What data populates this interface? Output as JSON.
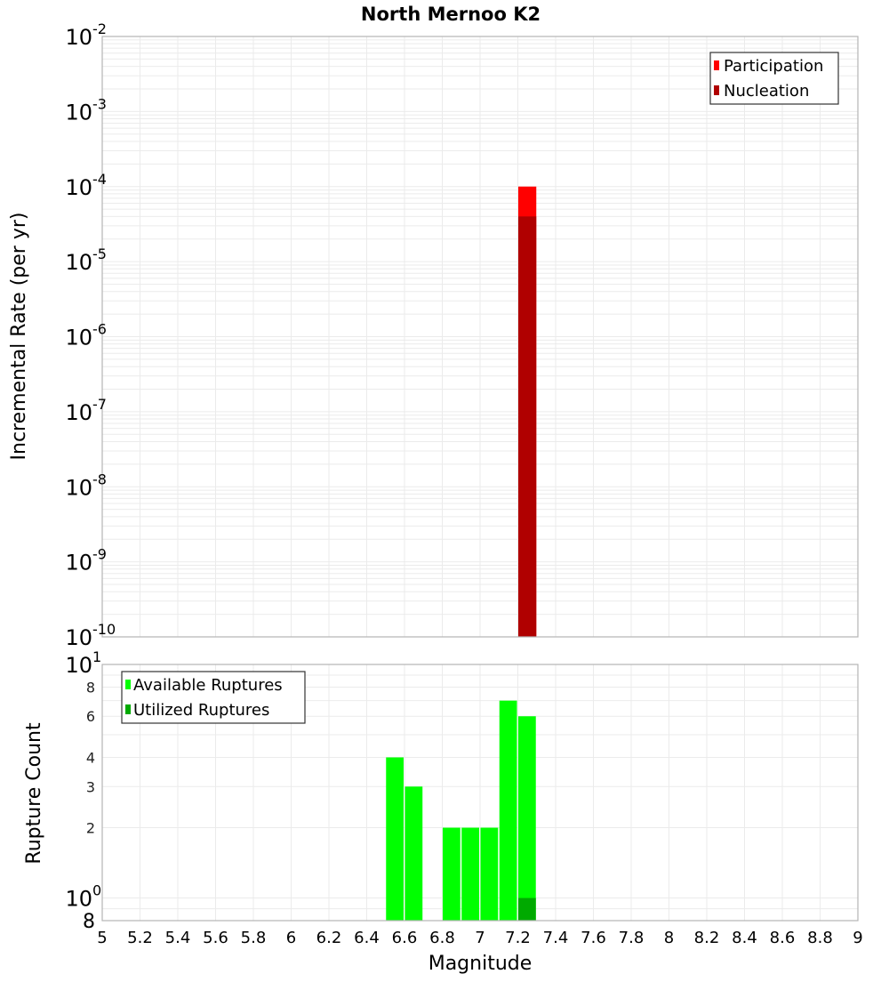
{
  "title": "North Mernoo K2",
  "colors": {
    "participation": "#ff0000",
    "nucleation": "#b00000",
    "available": "#00ff00",
    "utilized": "#00aa00",
    "grid": "#ebebeb",
    "frame": "#b4b4b4"
  },
  "chart_data": [
    {
      "type": "bar",
      "title": "North Mernoo K2",
      "xlabel": "Magnitude",
      "ylabel": "Incremental Rate (per yr)",
      "yscale": "log",
      "ylim": [
        1e-10,
        0.01
      ],
      "xlim": [
        5,
        9
      ],
      "ytick_labels": [
        {
          "base": "10",
          "exp": "-2"
        },
        {
          "base": "10",
          "exp": "-3"
        },
        {
          "base": "10",
          "exp": "-4"
        },
        {
          "base": "10",
          "exp": "-5"
        },
        {
          "base": "10",
          "exp": "-6"
        },
        {
          "base": "10",
          "exp": "-7"
        },
        {
          "base": "10",
          "exp": "-8"
        },
        {
          "base": "10",
          "exp": "-9"
        },
        {
          "base": "10",
          "exp": "-10"
        }
      ],
      "legend": {
        "position": "top-right",
        "entries": [
          "Participation",
          "Nucleation"
        ]
      },
      "grid": true,
      "bin_width": 0.1,
      "series": [
        {
          "name": "Participation",
          "x": [
            7.25
          ],
          "values": [
            0.0001
          ]
        },
        {
          "name": "Nucleation",
          "x": [
            7.25
          ],
          "values": [
            4e-05
          ]
        }
      ]
    },
    {
      "type": "bar",
      "title": "",
      "xlabel": "Magnitude",
      "ylabel": "Rupture Count",
      "yscale": "log",
      "ylim": [
        0.8,
        10
      ],
      "xlim": [
        5,
        9
      ],
      "ytick_labels": [
        {
          "value": 10,
          "label": "10",
          "exp": "1",
          "major": true
        },
        {
          "value": 8,
          "label": "8"
        },
        {
          "value": 6,
          "label": "6"
        },
        {
          "value": 4,
          "label": "4"
        },
        {
          "value": 3,
          "label": "3"
        },
        {
          "value": 2,
          "label": "2"
        },
        {
          "value": 1,
          "label": "10",
          "exp": "0",
          "major": true
        },
        {
          "value": 0.8,
          "label": "8",
          "major": true
        }
      ],
      "xtick_labels": [
        "5",
        "5.2",
        "5.4",
        "5.6",
        "5.8",
        "6",
        "6.2",
        "6.4",
        "6.6",
        "6.8",
        "7",
        "7.2",
        "7.4",
        "7.6",
        "7.8",
        "8",
        "8.2",
        "8.4",
        "8.6",
        "8.8",
        "9"
      ],
      "legend": {
        "position": "top-left",
        "entries": [
          "Available Ruptures",
          "Utilized Ruptures"
        ]
      },
      "grid": true,
      "bin_width": 0.1,
      "series": [
        {
          "name": "Available Ruptures",
          "x": [
            6.55,
            6.65,
            6.85,
            6.95,
            7.05,
            7.15,
            7.25
          ],
          "values": [
            4,
            3,
            2,
            2,
            2,
            7,
            6
          ]
        },
        {
          "name": "Utilized Ruptures",
          "x": [
            7.25
          ],
          "values": [
            1
          ]
        }
      ]
    }
  ]
}
